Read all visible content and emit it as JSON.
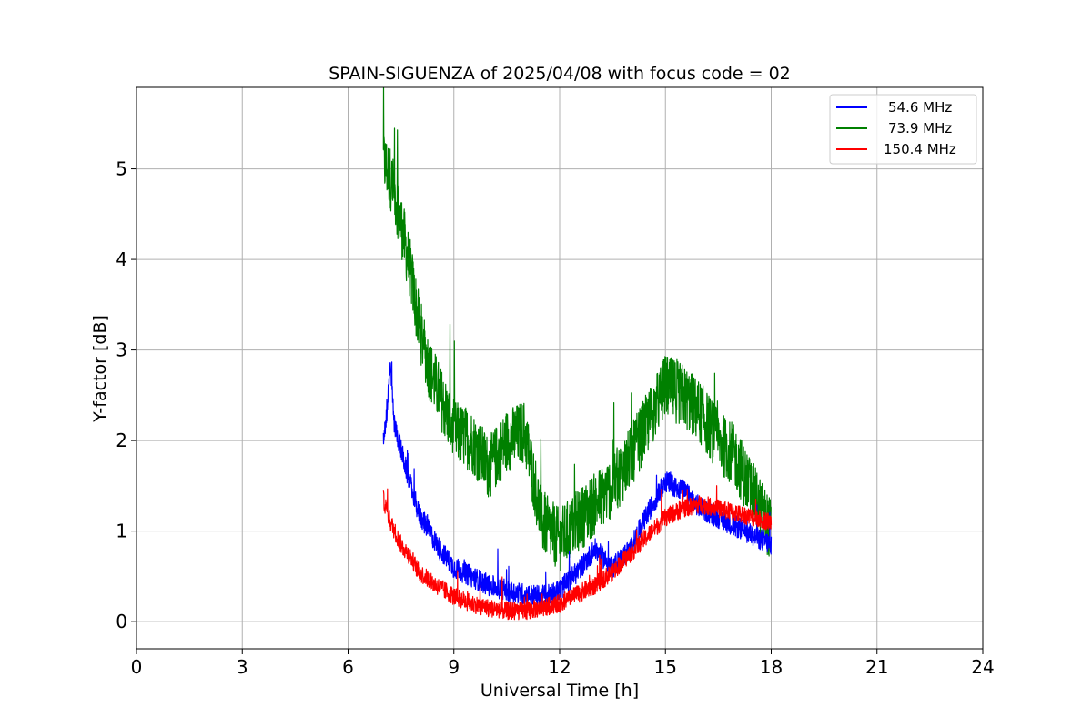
{
  "chart_data": {
    "type": "line",
    "title": "SPAIN-SIGUENZA of 2025/04/08 with focus code = 02",
    "xlabel": "Universal Time [h]",
    "ylabel": "Y-factor [dB]",
    "xlim": [
      0,
      24
    ],
    "ylim": [
      -0.3,
      5.9
    ],
    "xticks": [
      "0",
      "3",
      "6",
      "9",
      "12",
      "15",
      "18",
      "21",
      "24"
    ],
    "yticks": [
      "0",
      "1",
      "2",
      "3",
      "4",
      "5"
    ],
    "grid": true,
    "legend_position": "top-right",
    "series": [
      {
        "name": "54.6 MHz",
        "color": "#0000ff",
        "x": [
          7.0,
          7.1,
          7.2,
          7.3,
          7.5,
          7.7,
          8.0,
          8.3,
          8.6,
          9.0,
          9.5,
          10.0,
          10.5,
          11.0,
          11.5,
          12.0,
          12.5,
          13.0,
          13.5,
          14.0,
          14.5,
          15.0,
          15.5,
          16.0,
          16.5,
          17.0,
          17.5,
          18.0
        ],
        "y": [
          2.0,
          2.3,
          2.9,
          2.2,
          1.9,
          1.6,
          1.2,
          1.0,
          0.8,
          0.6,
          0.5,
          0.4,
          0.35,
          0.3,
          0.28,
          0.35,
          0.55,
          0.8,
          0.6,
          0.8,
          1.2,
          1.55,
          1.45,
          1.25,
          1.15,
          1.05,
          0.95,
          0.85
        ],
        "noise": 0.12
      },
      {
        "name": "73.9 MHz",
        "color": "#008000",
        "x": [
          7.0,
          7.2,
          7.4,
          7.6,
          7.8,
          8.0,
          8.3,
          8.6,
          9.0,
          9.5,
          10.0,
          10.5,
          11.0,
          11.5,
          12.0,
          12.5,
          13.0,
          13.5,
          14.0,
          14.5,
          15.0,
          15.5,
          16.0,
          16.5,
          17.0,
          17.5,
          18.0
        ],
        "y": [
          5.1,
          4.9,
          4.6,
          4.2,
          3.8,
          3.3,
          2.8,
          2.5,
          2.1,
          2.0,
          1.7,
          2.0,
          2.1,
          1.1,
          0.9,
          1.1,
          1.3,
          1.5,
          1.8,
          2.2,
          2.6,
          2.5,
          2.3,
          2.0,
          1.8,
          1.4,
          1.0
        ],
        "noise": 0.35
      },
      {
        "name": "150.4 MHz",
        "color": "#ff0000",
        "x": [
          7.0,
          7.2,
          7.5,
          7.8,
          8.0,
          8.5,
          9.0,
          9.5,
          10.0,
          10.5,
          11.0,
          11.5,
          12.0,
          12.5,
          13.0,
          13.5,
          14.0,
          14.5,
          15.0,
          15.5,
          16.0,
          16.5,
          17.0,
          17.5,
          18.0
        ],
        "y": [
          1.35,
          1.1,
          0.85,
          0.7,
          0.55,
          0.4,
          0.28,
          0.2,
          0.15,
          0.12,
          0.12,
          0.15,
          0.2,
          0.3,
          0.4,
          0.55,
          0.75,
          0.95,
          1.15,
          1.25,
          1.3,
          1.25,
          1.2,
          1.15,
          1.1
        ],
        "noise": 0.1
      }
    ]
  }
}
